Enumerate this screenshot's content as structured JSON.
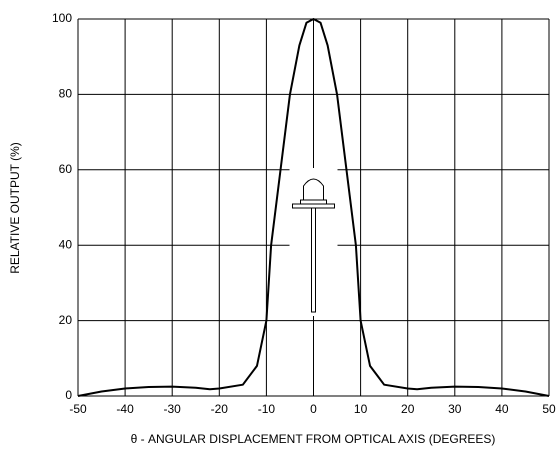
{
  "chart_data": {
    "type": "line",
    "xlabel": "θ - ANGULAR DISPLACEMENT FROM OPTICAL AXIS (DEGREES)",
    "ylabel": "RELATIVE OUTPUT (%)",
    "x": [
      -50,
      -45,
      -40,
      -35,
      -30,
      -25,
      -22,
      -20,
      -15,
      -12,
      -10,
      -9,
      -7,
      -5,
      -3,
      -1.5,
      0,
      1.5,
      3,
      5,
      7,
      9,
      10,
      12,
      15,
      20,
      22,
      25,
      30,
      35,
      40,
      45,
      50
    ],
    "series": [
      {
        "color": "#000000",
        "values": [
          0,
          1.2,
          2,
          2.4,
          2.5,
          2.2,
          1.8,
          2,
          3,
          8,
          20,
          40,
          60,
          80,
          93,
          99,
          100,
          99,
          93,
          80,
          60,
          40,
          20,
          8,
          3,
          2,
          1.8,
          2.2,
          2.5,
          2.4,
          2,
          1.2,
          0
        ]
      }
    ],
    "xlim": [
      -50,
      50
    ],
    "ylim": [
      0,
      100
    ],
    "xticks": [
      -50,
      -40,
      -30,
      -20,
      -10,
      0,
      10,
      20,
      30,
      40,
      50
    ],
    "yticks": [
      0,
      20,
      40,
      60,
      80,
      100
    ],
    "grid": true
  }
}
